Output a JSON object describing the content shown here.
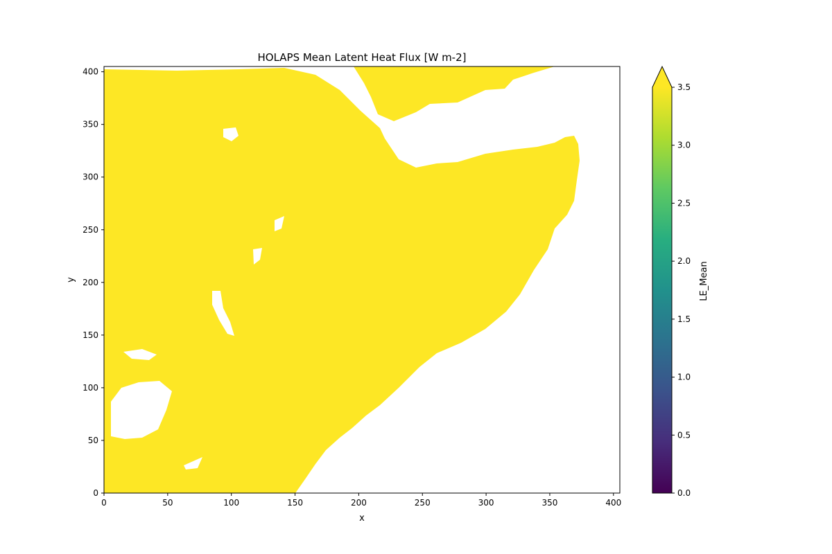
{
  "chart_data": {
    "type": "heatmap",
    "title": "HOLAPS Mean Latent Heat Flux [W m-2]",
    "xlabel": "x",
    "ylabel": "y",
    "xlim": [
      0,
      405
    ],
    "ylim": [
      0,
      405
    ],
    "x_ticks": [
      "0",
      "50",
      "100",
      "150",
      "200",
      "250",
      "300",
      "350",
      "400"
    ],
    "x_tick_values": [
      0,
      50,
      100,
      150,
      200,
      250,
      300,
      350,
      400
    ],
    "y_ticks": [
      "0",
      "50",
      "100",
      "150",
      "200",
      "250",
      "300",
      "350",
      "400"
    ],
    "y_tick_values": [
      0,
      50,
      100,
      150,
      200,
      250,
      300,
      350,
      400
    ],
    "colorbar": {
      "label": "LE_Mean",
      "colormap": "viridis",
      "range": [
        0.0,
        3.5
      ],
      "extend": "max",
      "ticks": [
        "0.0",
        "0.5",
        "1.0",
        "1.5",
        "2.0",
        "2.5",
        "3.0",
        "3.5"
      ],
      "tick_values": [
        0.0,
        0.5,
        1.0,
        1.5,
        2.0,
        2.5,
        3.0,
        3.5
      ]
    },
    "field_value": "≥ 3.5 (saturated at colormap maximum)",
    "field_color": "#fde725",
    "missing_color": "#ffffff",
    "grid": false
  }
}
